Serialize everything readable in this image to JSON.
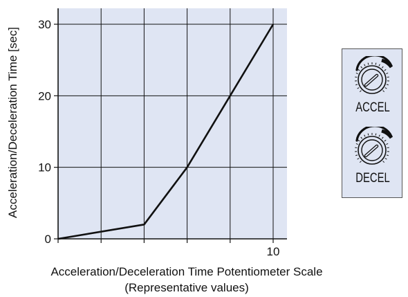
{
  "chart_data": {
    "type": "line",
    "xlabel": "Acceleration/Deceleration Time Potentiometer Scale",
    "xlabel_note": "(Representative values)",
    "ylabel": "Acceleration/Deceleration Time [sec]",
    "xlim": [
      0,
      10
    ],
    "ylim": [
      0,
      30
    ],
    "x_tick_labels": [
      {
        "value": 0,
        "label": "0"
      },
      {
        "value": 10,
        "label": "10"
      }
    ],
    "y_tick_labels": [
      {
        "value": 0,
        "label": "0"
      },
      {
        "value": 10,
        "label": "10"
      },
      {
        "value": 20,
        "label": "20"
      },
      {
        "value": 30,
        "label": "30"
      }
    ],
    "x_gridlines": [
      0,
      2,
      4,
      6,
      8,
      10
    ],
    "y_gridlines": [
      0,
      10,
      20,
      30
    ],
    "grid": true,
    "series": [
      {
        "x": [
          0,
          4,
          6,
          8,
          10
        ],
        "y": [
          0,
          2,
          10,
          20,
          30
        ]
      }
    ],
    "colors": {
      "plot_background": "#dfe5f3",
      "line": "#111111",
      "grid": "#111111"
    }
  },
  "knobs": [
    {
      "label": "ACCEL"
    },
    {
      "label": "DECEL"
    }
  ]
}
